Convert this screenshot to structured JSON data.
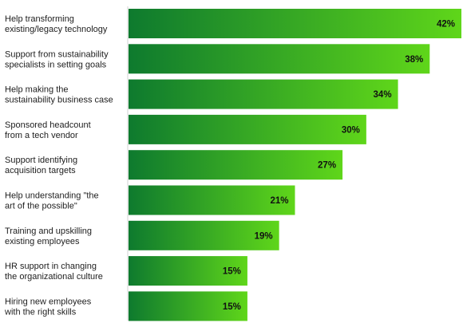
{
  "chart_data": {
    "type": "bar",
    "orientation": "horizontal",
    "categories": [
      [
        "Help transforming",
        "existing/legacy technology"
      ],
      [
        "Support from sustainability",
        "specialists in setting goals"
      ],
      [
        "Help making the",
        "sustainability business case"
      ],
      [
        "Sponsored headcount",
        "from a tech vendor"
      ],
      [
        "Support identifying",
        "acquisition targets"
      ],
      [
        "Help understanding \"the",
        "art of the possible\""
      ],
      [
        "Training and upskilling",
        "existing employees"
      ],
      [
        "HR support in changing",
        "the organizational culture"
      ],
      [
        "Hiring new employees",
        "with the right skills"
      ]
    ],
    "values": [
      42,
      38,
      34,
      30,
      27,
      21,
      19,
      15,
      15
    ],
    "value_labels": [
      "42%",
      "38%",
      "34%",
      "30%",
      "27%",
      "21%",
      "19%",
      "15%",
      "15%"
    ],
    "xlim": [
      0,
      42
    ],
    "colors": {
      "bar_dark": "#0e7a2e",
      "bar_light": "#5fd61a",
      "axis": "#d0d0d0"
    },
    "grid": false,
    "legend": "none"
  }
}
